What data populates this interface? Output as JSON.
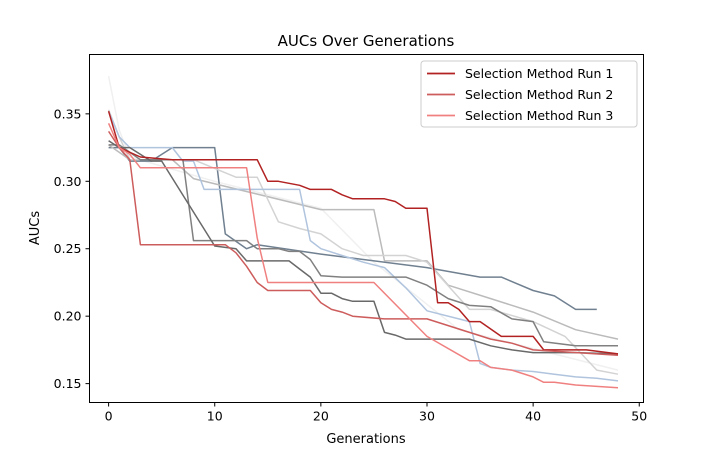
{
  "chart_data": {
    "type": "line",
    "title": "AUCs Over Generations",
    "xlabel": "Generations",
    "ylabel": "AUCs",
    "xlim": [
      -1.8,
      50.4
    ],
    "ylim": [
      0.136,
      0.394
    ],
    "xticks": [
      0,
      10,
      20,
      30,
      40,
      50
    ],
    "yticks": [
      0.15,
      0.2,
      0.25,
      0.3,
      0.35
    ],
    "ytick_labels": [
      "0.15",
      "0.20",
      "0.25",
      "0.30",
      "0.35"
    ],
    "grid": false,
    "legend_position": "top-right",
    "series": [
      {
        "name": "",
        "color": "#f0f0f0",
        "x": [
          0,
          1,
          2,
          10,
          20,
          25,
          33,
          48
        ],
        "y": [
          0.378,
          0.338,
          0.318,
          0.3,
          0.28,
          0.24,
          0.19,
          0.16
        ]
      },
      {
        "name": "",
        "color": "#708090",
        "x": [
          0,
          1,
          2,
          4,
          6,
          10,
          11,
          13,
          14,
          20,
          30,
          35,
          37,
          40,
          42,
          44,
          46
        ],
        "y": [
          0.325,
          0.325,
          0.315,
          0.315,
          0.325,
          0.325,
          0.261,
          0.25,
          0.253,
          0.246,
          0.236,
          0.229,
          0.229,
          0.219,
          0.215,
          0.205,
          0.205
        ]
      },
      {
        "name": "",
        "color": "#bbbbbb",
        "x": [
          0,
          2,
          6,
          8,
          20,
          21,
          25,
          26,
          30,
          32,
          36,
          40,
          44,
          48
        ],
        "y": [
          0.327,
          0.316,
          0.316,
          0.302,
          0.279,
          0.279,
          0.279,
          0.241,
          0.241,
          0.223,
          0.213,
          0.203,
          0.19,
          0.183
        ]
      },
      {
        "name": "",
        "color": "#d3d3d3",
        "x": [
          0,
          1,
          2,
          4,
          6,
          8,
          12,
          14,
          16,
          18,
          20,
          22,
          24,
          28,
          30,
          34,
          36,
          40,
          43,
          46,
          48
        ],
        "y": [
          0.353,
          0.333,
          0.316,
          0.316,
          0.316,
          0.316,
          0.303,
          0.303,
          0.27,
          0.265,
          0.261,
          0.25,
          0.245,
          0.245,
          0.24,
          0.205,
          0.205,
          0.196,
          0.185,
          0.16,
          0.157
        ]
      },
      {
        "name": "",
        "color": "#b0c4de",
        "x": [
          0,
          1,
          2,
          6,
          7,
          8,
          9,
          10,
          15,
          16,
          18,
          19,
          20,
          22,
          24,
          26,
          28,
          30,
          33,
          34,
          35,
          36,
          38,
          40,
          42,
          44,
          46,
          48
        ],
        "y": [
          0.352,
          0.333,
          0.325,
          0.325,
          0.315,
          0.315,
          0.294,
          0.294,
          0.294,
          0.294,
          0.294,
          0.256,
          0.25,
          0.245,
          0.24,
          0.236,
          0.221,
          0.204,
          0.198,
          0.196,
          0.165,
          0.162,
          0.16,
          0.159,
          0.157,
          0.155,
          0.154,
          0.152
        ]
      },
      {
        "name": "",
        "color": "#808080",
        "x": [
          0,
          1,
          3,
          7,
          8,
          9,
          10,
          12,
          13,
          14,
          16,
          17,
          18,
          19,
          20,
          22,
          24,
          26,
          28,
          30,
          32,
          34,
          36,
          38,
          40,
          41,
          44,
          48
        ],
        "y": [
          0.327,
          0.327,
          0.316,
          0.316,
          0.256,
          0.256,
          0.256,
          0.256,
          0.256,
          0.25,
          0.25,
          0.248,
          0.248,
          0.242,
          0.23,
          0.229,
          0.229,
          0.229,
          0.229,
          0.223,
          0.213,
          0.208,
          0.207,
          0.198,
          0.196,
          0.181,
          0.178,
          0.178
        ]
      },
      {
        "name": "",
        "color": "#696969",
        "x": [
          0,
          1,
          2,
          4,
          5,
          10,
          12,
          13,
          14,
          17,
          18,
          19,
          20,
          21,
          22,
          23,
          25,
          26,
          27,
          28,
          30,
          32,
          34,
          36,
          38,
          40,
          44,
          48
        ],
        "y": [
          0.33,
          0.325,
          0.325,
          0.315,
          0.315,
          0.252,
          0.25,
          0.241,
          0.241,
          0.241,
          0.235,
          0.229,
          0.217,
          0.217,
          0.213,
          0.211,
          0.211,
          0.188,
          0.186,
          0.183,
          0.183,
          0.183,
          0.183,
          0.178,
          0.175,
          0.173,
          0.173,
          0.172
        ]
      },
      {
        "name": "Selection Method Run 1",
        "color": "#b22222",
        "x": [
          0,
          1,
          3,
          6,
          14,
          15,
          16,
          18,
          19,
          20,
          21,
          22,
          23,
          26,
          27,
          28,
          29,
          30,
          31,
          32,
          33,
          34,
          35,
          37,
          38,
          40,
          41,
          45,
          48
        ],
        "y": [
          0.352,
          0.325,
          0.318,
          0.316,
          0.316,
          0.3,
          0.3,
          0.297,
          0.294,
          0.294,
          0.294,
          0.29,
          0.287,
          0.287,
          0.285,
          0.28,
          0.28,
          0.28,
          0.21,
          0.21,
          0.205,
          0.196,
          0.196,
          0.185,
          0.185,
          0.185,
          0.175,
          0.175,
          0.172
        ]
      },
      {
        "name": "Selection Method Run 2",
        "color": "#cd5c5c",
        "x": [
          0,
          1,
          2,
          3,
          5,
          11,
          12,
          13,
          14,
          15,
          16,
          18,
          19,
          20,
          21,
          22,
          23,
          26,
          28,
          30,
          36,
          38,
          40,
          48
        ],
        "y": [
          0.337,
          0.325,
          0.316,
          0.253,
          0.253,
          0.253,
          0.247,
          0.237,
          0.225,
          0.219,
          0.219,
          0.219,
          0.219,
          0.21,
          0.205,
          0.203,
          0.2,
          0.198,
          0.198,
          0.198,
          0.183,
          0.18,
          0.175,
          0.171
        ]
      },
      {
        "name": "Selection Method Run 3",
        "color": "#f08080",
        "x": [
          0,
          1,
          2,
          3,
          7,
          8,
          13,
          14,
          15,
          25,
          30,
          34,
          35,
          36,
          38,
          40,
          41,
          42,
          44,
          48
        ],
        "y": [
          0.343,
          0.325,
          0.32,
          0.31,
          0.31,
          0.31,
          0.31,
          0.258,
          0.225,
          0.225,
          0.185,
          0.167,
          0.167,
          0.162,
          0.16,
          0.155,
          0.151,
          0.151,
          0.149,
          0.147
        ]
      }
    ]
  }
}
